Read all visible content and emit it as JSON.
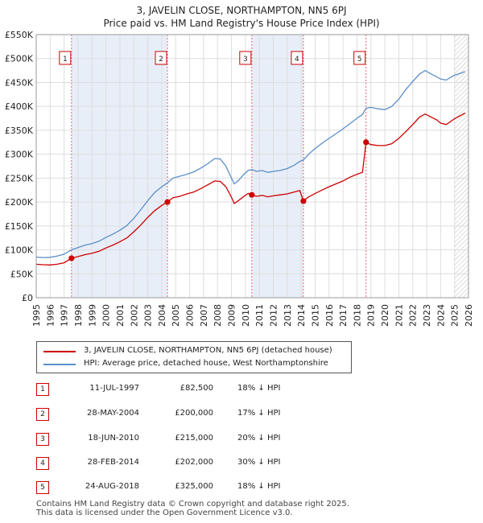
{
  "title_line1": "3, JAVELIN CLOSE, NORTHAMPTON, NN5 6PJ",
  "title_line2": "Price paid vs. HM Land Registry's House Price Index (HPI)",
  "chart_data": {
    "type": "line",
    "xlim": [
      1995,
      2026
    ],
    "ylim": [
      0,
      550000
    ],
    "y_ticks": [
      {
        "value": 0,
        "label": "£0"
      },
      {
        "value": 50000,
        "label": "£50K"
      },
      {
        "value": 100000,
        "label": "£100K"
      },
      {
        "value": 150000,
        "label": "£150K"
      },
      {
        "value": 200000,
        "label": "£200K"
      },
      {
        "value": 250000,
        "label": "£250K"
      },
      {
        "value": 300000,
        "label": "£300K"
      },
      {
        "value": 350000,
        "label": "£350K"
      },
      {
        "value": 400000,
        "label": "£400K"
      },
      {
        "value": 450000,
        "label": "£450K"
      },
      {
        "value": 500000,
        "label": "£500K"
      },
      {
        "value": 550000,
        "label": "£550K"
      }
    ],
    "x_ticks": [
      "1995",
      "1996",
      "1997",
      "1998",
      "1999",
      "2000",
      "2001",
      "2002",
      "2003",
      "2004",
      "2005",
      "2006",
      "2007",
      "2008",
      "2009",
      "2010",
      "2011",
      "2012",
      "2013",
      "2014",
      "2015",
      "2016",
      "2017",
      "2018",
      "2019",
      "2020",
      "2021",
      "2022",
      "2023",
      "2024",
      "2025",
      "2026"
    ],
    "forecast_start": 2025.0,
    "series": [
      {
        "name": "3, JAVELIN CLOSE, NORTHAMPTON, NN5 6PJ (detached house)",
        "color": "#cc0000",
        "points": [
          [
            1995.0,
            70000
          ],
          [
            1995.5,
            69000
          ],
          [
            1996.0,
            68500
          ],
          [
            1996.5,
            70000
          ],
          [
            1997.0,
            73000
          ],
          [
            1997.53,
            82500
          ],
          [
            1998.0,
            86000
          ],
          [
            1998.5,
            90000
          ],
          [
            1999.0,
            93000
          ],
          [
            1999.5,
            97000
          ],
          [
            2000.0,
            104000
          ],
          [
            2000.5,
            110000
          ],
          [
            2001.0,
            117000
          ],
          [
            2001.5,
            125000
          ],
          [
            2002.0,
            138000
          ],
          [
            2002.5,
            152000
          ],
          [
            2003.0,
            168000
          ],
          [
            2003.5,
            182000
          ],
          [
            2004.0,
            193000
          ],
          [
            2004.41,
            200000
          ],
          [
            2004.8,
            209000
          ],
          [
            2005.3,
            212000
          ],
          [
            2005.8,
            217000
          ],
          [
            2006.3,
            221000
          ],
          [
            2006.8,
            228000
          ],
          [
            2007.3,
            236000
          ],
          [
            2007.8,
            244000
          ],
          [
            2008.2,
            243000
          ],
          [
            2008.6,
            232000
          ],
          [
            2009.0,
            210000
          ],
          [
            2009.2,
            197000
          ],
          [
            2009.5,
            203000
          ],
          [
            2009.9,
            212000
          ],
          [
            2010.2,
            218000
          ],
          [
            2010.46,
            215000
          ],
          [
            2010.8,
            212000
          ],
          [
            2011.2,
            214000
          ],
          [
            2011.6,
            211000
          ],
          [
            2012.0,
            213000
          ],
          [
            2012.5,
            215000
          ],
          [
            2013.0,
            217000
          ],
          [
            2013.5,
            221000
          ],
          [
            2013.9,
            224000
          ],
          [
            2014.16,
            202000
          ],
          [
            2014.5,
            210000
          ],
          [
            2015.0,
            218000
          ],
          [
            2015.5,
            225000
          ],
          [
            2016.0,
            232000
          ],
          [
            2016.5,
            238000
          ],
          [
            2017.0,
            244000
          ],
          [
            2017.5,
            252000
          ],
          [
            2018.0,
            258000
          ],
          [
            2018.4,
            262000
          ],
          [
            2018.65,
            325000
          ],
          [
            2019.0,
            320000
          ],
          [
            2019.5,
            318000
          ],
          [
            2020.0,
            318000
          ],
          [
            2020.5,
            322000
          ],
          [
            2021.0,
            333000
          ],
          [
            2021.5,
            347000
          ],
          [
            2022.0,
            362000
          ],
          [
            2022.5,
            378000
          ],
          [
            2022.9,
            384000
          ],
          [
            2023.3,
            378000
          ],
          [
            2023.7,
            372000
          ],
          [
            2024.0,
            365000
          ],
          [
            2024.4,
            362000
          ],
          [
            2024.8,
            370000
          ],
          [
            2025.0,
            374000
          ],
          [
            2025.5,
            382000
          ],
          [
            2025.75,
            386000
          ]
        ]
      },
      {
        "name": "HPI: Average price, detached house, West Northamptonshire",
        "color": "#5b8ec7",
        "points": [
          [
            1995.0,
            85000
          ],
          [
            1995.5,
            84000
          ],
          [
            1996.0,
            84500
          ],
          [
            1996.5,
            87000
          ],
          [
            1997.0,
            91000
          ],
          [
            1997.53,
            100000
          ],
          [
            1998.0,
            105000
          ],
          [
            1998.5,
            110000
          ],
          [
            1999.0,
            113000
          ],
          [
            1999.5,
            118000
          ],
          [
            2000.0,
            126000
          ],
          [
            2000.5,
            133000
          ],
          [
            2001.0,
            141000
          ],
          [
            2001.5,
            151000
          ],
          [
            2002.0,
            166000
          ],
          [
            2002.5,
            184000
          ],
          [
            2003.0,
            203000
          ],
          [
            2003.5,
            220000
          ],
          [
            2004.0,
            232000
          ],
          [
            2004.41,
            240000
          ],
          [
            2004.8,
            250000
          ],
          [
            2005.3,
            254000
          ],
          [
            2005.8,
            258000
          ],
          [
            2006.3,
            263000
          ],
          [
            2006.8,
            271000
          ],
          [
            2007.3,
            280000
          ],
          [
            2007.8,
            291000
          ],
          [
            2008.2,
            290000
          ],
          [
            2008.6,
            275000
          ],
          [
            2009.0,
            250000
          ],
          [
            2009.2,
            238000
          ],
          [
            2009.5,
            245000
          ],
          [
            2009.9,
            258000
          ],
          [
            2010.2,
            266000
          ],
          [
            2010.46,
            268000
          ],
          [
            2010.8,
            264000
          ],
          [
            2011.2,
            266000
          ],
          [
            2011.6,
            262000
          ],
          [
            2012.0,
            264000
          ],
          [
            2012.5,
            266000
          ],
          [
            2013.0,
            270000
          ],
          [
            2013.5,
            277000
          ],
          [
            2013.9,
            285000
          ],
          [
            2014.16,
            288000
          ],
          [
            2014.5,
            299000
          ],
          [
            2015.0,
            312000
          ],
          [
            2015.5,
            323000
          ],
          [
            2016.0,
            333000
          ],
          [
            2016.5,
            343000
          ],
          [
            2017.0,
            353000
          ],
          [
            2017.5,
            364000
          ],
          [
            2018.0,
            375000
          ],
          [
            2018.4,
            383000
          ],
          [
            2018.65,
            396000
          ],
          [
            2019.0,
            398000
          ],
          [
            2019.5,
            395000
          ],
          [
            2020.0,
            393000
          ],
          [
            2020.5,
            400000
          ],
          [
            2021.0,
            415000
          ],
          [
            2021.5,
            435000
          ],
          [
            2022.0,
            452000
          ],
          [
            2022.5,
            468000
          ],
          [
            2022.9,
            475000
          ],
          [
            2023.3,
            468000
          ],
          [
            2023.7,
            462000
          ],
          [
            2024.0,
            457000
          ],
          [
            2024.4,
            455000
          ],
          [
            2024.8,
            462000
          ],
          [
            2025.0,
            465000
          ],
          [
            2025.5,
            470000
          ],
          [
            2025.75,
            473000
          ]
        ]
      }
    ],
    "sales": [
      {
        "num": "1",
        "x": 1997.53,
        "price": 82500
      },
      {
        "num": "2",
        "x": 2004.41,
        "price": 200000
      },
      {
        "num": "3",
        "x": 2010.46,
        "price": 215000
      },
      {
        "num": "4",
        "x": 2014.16,
        "price": 202000
      },
      {
        "num": "5",
        "x": 2018.65,
        "price": 325000
      }
    ],
    "shaded_spans": [
      [
        1997.53,
        2004.41
      ],
      [
        2010.46,
        2014.16
      ]
    ]
  },
  "legend": {
    "property_label": "3, JAVELIN CLOSE, NORTHAMPTON, NN5 6PJ (detached house)",
    "hpi_label": "HPI: Average price, detached house, West Northamptonshire"
  },
  "transactions": [
    {
      "num": "1",
      "date": "11-JUL-1997",
      "price": "£82,500",
      "hpi": "18% ↓ HPI"
    },
    {
      "num": "2",
      "date": "28-MAY-2004",
      "price": "£200,000",
      "hpi": "17% ↓ HPI"
    },
    {
      "num": "3",
      "date": "18-JUN-2010",
      "price": "£215,000",
      "hpi": "20% ↓ HPI"
    },
    {
      "num": "4",
      "date": "28-FEB-2014",
      "price": "£202,000",
      "hpi": "30% ↓ HPI"
    },
    {
      "num": "5",
      "date": "24-AUG-2018",
      "price": "£325,000",
      "hpi": "18% ↓ HPI"
    }
  ],
  "footer_line1": "Contains HM Land Registry data © Crown copyright and database right 2025.",
  "footer_line2": "This data is licensed under the Open Government Licence v3.0.",
  "colors": {
    "property": "#cc0000",
    "hpi": "#5b8ec7",
    "shade": "#e8eef8",
    "grid": "#dddddd"
  }
}
